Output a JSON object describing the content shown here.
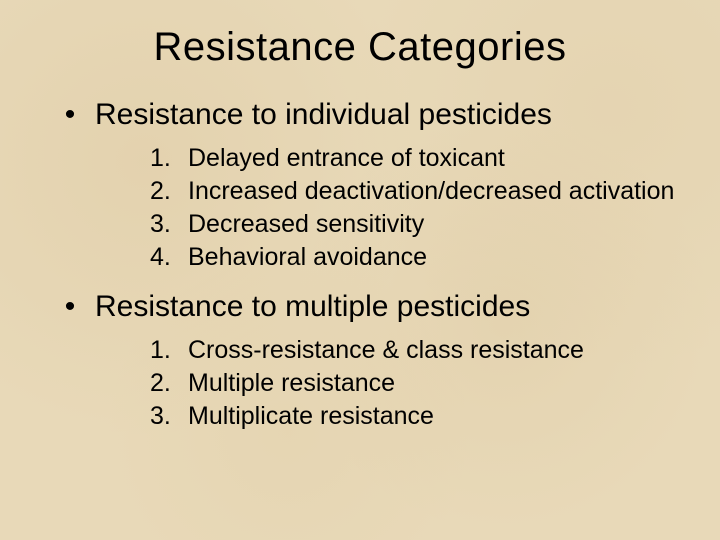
{
  "slide": {
    "title": "Resistance Categories",
    "sections": [
      {
        "bullet": "•",
        "title": "Resistance to individual pesticides",
        "items": [
          {
            "num": "1.",
            "text": "Delayed entrance of toxicant"
          },
          {
            "num": "2.",
            "text": "Increased deactivation/decreased activation"
          },
          {
            "num": "3.",
            "text": "Decreased sensitivity"
          },
          {
            "num": "4.",
            "text": "Behavioral avoidance"
          }
        ]
      },
      {
        "bullet": "•",
        "title": "Resistance to multiple pesticides",
        "items": [
          {
            "num": "1.",
            "text": "Cross-resistance & class resistance"
          },
          {
            "num": "2.",
            "text": "Multiple resistance"
          },
          {
            "num": "3.",
            "text": "Multiplicate resistance"
          }
        ]
      }
    ],
    "colors": {
      "background": "#e8d9b8",
      "text": "#000000"
    },
    "typography": {
      "title_fontsize": 40,
      "section_fontsize": 30,
      "item_fontsize": 25,
      "font_family": "Arial"
    }
  }
}
